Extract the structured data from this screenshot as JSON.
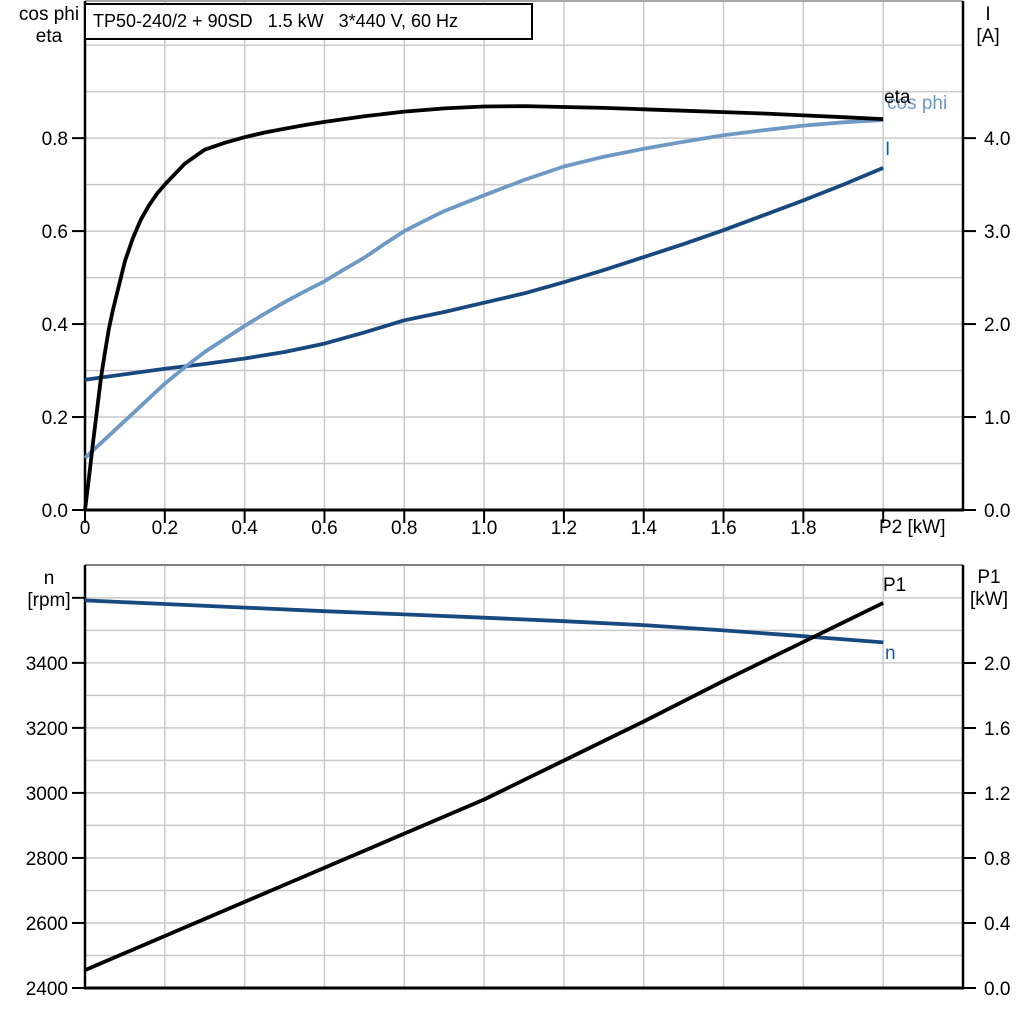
{
  "colors": {
    "background": "#ffffff",
    "grid": "#c9c9c9",
    "frame": "#000000",
    "frame_top_upper": "#a6a6a6",
    "frame_top_lower": "#808080",
    "curve_black": "#000000",
    "curve_light_blue": "#6e99c4",
    "curve_dark_blue": "#17497f",
    "label_blue": "#1f5c99"
  },
  "chart_data": [
    {
      "type": "line",
      "title": "TP50-240/2 + 90SD   1.5 kW   3*440 V, 60 Hz",
      "x": {
        "label": "P2 [kW]",
        "min": 0,
        "max": 2.2,
        "ticks": [
          0,
          0.2,
          0.4,
          0.6,
          0.8,
          1.0,
          1.2,
          1.4,
          1.6,
          1.8,
          2.0
        ],
        "tick_labels": [
          "0",
          "0.2",
          "0.4",
          "0.6",
          "0.8",
          "1.0",
          "1.2",
          "1.4",
          "1.6",
          "1.8",
          ""
        ],
        "gridlines": [
          0.2,
          0.4,
          0.6,
          0.8,
          1.0,
          1.2,
          1.4,
          1.6,
          1.8,
          2.0
        ]
      },
      "y_left": {
        "title1": "cos phi",
        "title2": "eta",
        "min": 0,
        "max": 1.095,
        "ticks": [
          0,
          0.2,
          0.4,
          0.6,
          0.8
        ],
        "tick_labels": [
          "0.0",
          "0.2",
          "0.4",
          "0.6",
          "0.8"
        ],
        "gridlines": [
          0.1,
          0.2,
          0.3,
          0.4,
          0.5,
          0.6,
          0.7,
          0.8,
          0.9,
          1.0
        ]
      },
      "y_right": {
        "title1": "I",
        "title2": "[A]",
        "min": 0,
        "max": 5.475,
        "ticks": [
          0,
          1,
          2,
          3,
          4
        ],
        "tick_labels": [
          "0.0",
          "1.0",
          "2.0",
          "3.0",
          "4.0"
        ]
      },
      "series": [
        {
          "name": "I",
          "label": "I",
          "axis": "right",
          "color": "#17497f",
          "label_color": "#1f5c99",
          "points": [
            [
              0,
              1.4
            ],
            [
              0.1,
              1.46
            ],
            [
              0.2,
              1.52
            ],
            [
              0.3,
              1.57
            ],
            [
              0.4,
              1.63
            ],
            [
              0.5,
              1.7
            ],
            [
              0.6,
              1.79
            ],
            [
              0.7,
              1.91
            ],
            [
              0.8,
              2.04
            ],
            [
              0.9,
              2.13
            ],
            [
              1.0,
              2.23
            ],
            [
              1.1,
              2.33
            ],
            [
              1.2,
              2.45
            ],
            [
              1.3,
              2.58
            ],
            [
              1.4,
              2.72
            ],
            [
              1.5,
              2.86
            ],
            [
              1.6,
              3.01
            ],
            [
              1.7,
              3.17
            ],
            [
              1.8,
              3.33
            ],
            [
              1.9,
              3.5
            ],
            [
              2.0,
              3.68
            ]
          ]
        },
        {
          "name": "cos phi",
          "label": "cos phi",
          "axis": "left",
          "color": "#6e99c4",
          "label_color": "#6e99c4",
          "points": [
            [
              0,
              0.112
            ],
            [
              0.05,
              0.152
            ],
            [
              0.1,
              0.192
            ],
            [
              0.15,
              0.232
            ],
            [
              0.2,
              0.272
            ],
            [
              0.25,
              0.307
            ],
            [
              0.3,
              0.34
            ],
            [
              0.35,
              0.368
            ],
            [
              0.4,
              0.396
            ],
            [
              0.45,
              0.422
            ],
            [
              0.5,
              0.447
            ],
            [
              0.55,
              0.47
            ],
            [
              0.6,
              0.492
            ],
            [
              0.65,
              0.518
            ],
            [
              0.7,
              0.543
            ],
            [
              0.75,
              0.572
            ],
            [
              0.8,
              0.6
            ],
            [
              0.85,
              0.622
            ],
            [
              0.9,
              0.643
            ],
            [
              0.95,
              0.66
            ],
            [
              1.0,
              0.677
            ],
            [
              1.1,
              0.71
            ],
            [
              1.2,
              0.739
            ],
            [
              1.3,
              0.76
            ],
            [
              1.4,
              0.777
            ],
            [
              1.5,
              0.792
            ],
            [
              1.6,
              0.806
            ],
            [
              1.7,
              0.817
            ],
            [
              1.8,
              0.827
            ],
            [
              1.9,
              0.834
            ],
            [
              2.0,
              0.839
            ]
          ]
        },
        {
          "name": "eta",
          "label": "eta",
          "axis": "left",
          "color": "#000000",
          "label_color": "#000000",
          "points": [
            [
              0,
              0
            ],
            [
              0.01,
              0.07
            ],
            [
              0.02,
              0.145
            ],
            [
              0.03,
              0.215
            ],
            [
              0.04,
              0.285
            ],
            [
              0.05,
              0.34
            ],
            [
              0.06,
              0.39
            ],
            [
              0.07,
              0.43
            ],
            [
              0.08,
              0.465
            ],
            [
              0.09,
              0.5
            ],
            [
              0.1,
              0.535
            ],
            [
              0.12,
              0.585
            ],
            [
              0.14,
              0.625
            ],
            [
              0.16,
              0.655
            ],
            [
              0.18,
              0.68
            ],
            [
              0.2,
              0.7
            ],
            [
              0.25,
              0.745
            ],
            [
              0.3,
              0.775
            ],
            [
              0.35,
              0.79
            ],
            [
              0.4,
              0.802
            ],
            [
              0.45,
              0.812
            ],
            [
              0.5,
              0.82
            ],
            [
              0.55,
              0.828
            ],
            [
              0.6,
              0.835
            ],
            [
              0.7,
              0.847
            ],
            [
              0.8,
              0.857
            ],
            [
              0.9,
              0.864
            ],
            [
              1.0,
              0.868
            ],
            [
              1.1,
              0.869
            ],
            [
              1.2,
              0.867
            ],
            [
              1.3,
              0.865
            ],
            [
              1.4,
              0.862
            ],
            [
              1.5,
              0.859
            ],
            [
              1.6,
              0.856
            ],
            [
              1.7,
              0.853
            ],
            [
              1.8,
              0.849
            ],
            [
              1.9,
              0.845
            ],
            [
              2.0,
              0.841
            ]
          ]
        }
      ]
    },
    {
      "type": "line",
      "title": "",
      "x": {
        "label": "",
        "min": 0,
        "max": 2.2,
        "ticks": [],
        "tick_labels": [],
        "gridlines": [
          0.2,
          0.4,
          0.6,
          0.8,
          1.0,
          1.2,
          1.4,
          1.6,
          1.8,
          2.0
        ]
      },
      "y_left": {
        "title1": "n",
        "title2": "[rpm]",
        "min": 2400,
        "max": 3701,
        "ticks": [
          2400,
          2600,
          2800,
          3000,
          3200,
          3400,
          3600
        ],
        "tick_labels": [
          "2400",
          "2600",
          "2800",
          "3000",
          "3200",
          "3400",
          ""
        ],
        "gridlines": [
          2500,
          2600,
          2700,
          2800,
          2900,
          3000,
          3100,
          3200,
          3300,
          3400,
          3500,
          3600
        ]
      },
      "y_right": {
        "title1": "P1",
        "title2": "[kW]",
        "min": 0,
        "max": 2.603,
        "ticks": [
          0,
          0.4,
          0.8,
          1.2,
          1.6,
          2.0
        ],
        "tick_labels": [
          "0.0",
          "0.4",
          "0.8",
          "1.2",
          "1.6",
          "2.0"
        ]
      },
      "series": [
        {
          "name": "n",
          "label": "n",
          "axis": "left",
          "color": "#17497f",
          "label_color": "#1f5c99",
          "points": [
            [
              0,
              3592
            ],
            [
              0.2,
              3581
            ],
            [
              0.4,
              3570
            ],
            [
              0.6,
              3559
            ],
            [
              0.8,
              3549
            ],
            [
              1.0,
              3539
            ],
            [
              1.2,
              3528
            ],
            [
              1.4,
              3516
            ],
            [
              1.6,
              3500
            ],
            [
              1.8,
              3482
            ],
            [
              2.0,
              3463
            ]
          ]
        },
        {
          "name": "P1",
          "label": "P1",
          "axis": "right",
          "color": "#000000",
          "label_color": "#000000",
          "points": [
            [
              0,
              0.11
            ],
            [
              0.2,
              0.32
            ],
            [
              0.4,
              0.53
            ],
            [
              0.6,
              0.74
            ],
            [
              0.8,
              0.95
            ],
            [
              1.0,
              1.16
            ],
            [
              1.2,
              1.4
            ],
            [
              1.4,
              1.64
            ],
            [
              1.6,
              1.89
            ],
            [
              1.8,
              2.13
            ],
            [
              2.0,
              2.37
            ]
          ]
        }
      ]
    }
  ]
}
